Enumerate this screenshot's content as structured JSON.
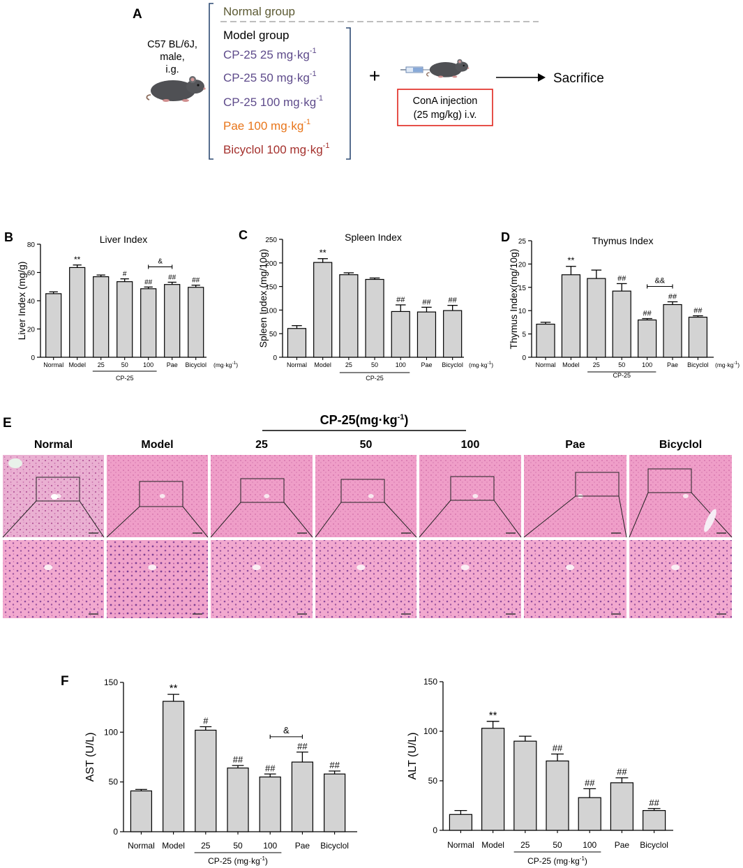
{
  "panel_a": {
    "letter": "A",
    "mouse_label": [
      "C57 BL/6J,",
      "male,",
      "i.g."
    ],
    "groups": [
      {
        "text": "Normal group",
        "color": "#5c5a33"
      },
      {
        "text": "Model group",
        "color": "#000000"
      },
      {
        "text": "CP-25 25 mg·kg",
        "sup": "-1",
        "color": "#5e4b8b"
      },
      {
        "text": "CP-25 50 mg·kg",
        "sup": "-1",
        "color": "#5e4b8b"
      },
      {
        "text": "CP-25 100 mg·kg",
        "sup": "-1",
        "color": "#5e4b8b"
      },
      {
        "text": "Pae 100 mg·kg",
        "sup": "-1",
        "color": "#e8751a"
      },
      {
        "text": "Bicyclol 100 mg·kg",
        "sup": "-1",
        "color": "#a4302c"
      }
    ],
    "plus": "+",
    "injection_box": [
      "ConA injection",
      "(25 mg/kg) i.v."
    ],
    "injection_box_color": "#e0241c",
    "outcome": "Sacrifice"
  },
  "panel_e": {
    "letter": "E",
    "header": "CP-25(mg·kg",
    "header_sup": "-1",
    "header_close": ")",
    "columns": [
      "Normal",
      "Model",
      "25",
      "50",
      "100",
      "Pae",
      "Bicyclol"
    ]
  },
  "panel_f": {
    "letter": "F"
  },
  "colors": {
    "bar_fill": "#d3d3d3",
    "tissue_light": "#f0b5d6",
    "tissue_dark": "#d777b0"
  },
  "chart_data": [
    {
      "id": "liver",
      "letter": "B",
      "type": "bar",
      "title": "Liver Index",
      "ylabel": "Liver Index (mg/g)",
      "ylim": [
        0,
        80
      ],
      "yticks": [
        0,
        20,
        40,
        60,
        80
      ],
      "categories": [
        "Normal",
        "Model",
        "25",
        "50",
        "100",
        "Pae",
        "Bicyclol"
      ],
      "values": [
        45,
        63.5,
        57,
        53.5,
        48.5,
        51.5,
        49.5
      ],
      "errors": [
        1.3,
        1.8,
        1.2,
        2.0,
        1.2,
        1.6,
        1.5
      ],
      "annotations": [
        "",
        "**",
        "",
        "#",
        "##",
        "##",
        "##"
      ],
      "bracket": {
        "from": 4,
        "to": 5,
        "label": "&"
      },
      "group_label": "CP-25",
      "unit": "(mg·kg",
      "unit_sup": "-1",
      "unit_close": ")"
    },
    {
      "id": "spleen",
      "letter": "C",
      "type": "bar",
      "title": "Spleen Index",
      "ylabel": "Spleen Index (mg/10g)",
      "ylim": [
        0,
        250
      ],
      "yticks": [
        0,
        50,
        100,
        150,
        200,
        250
      ],
      "categories": [
        "Normal",
        "Model",
        "25",
        "50",
        "100",
        "Pae",
        "Bicyclol"
      ],
      "values": [
        61,
        201,
        175,
        165,
        97,
        96,
        99
      ],
      "errors": [
        6,
        8,
        4,
        3,
        14,
        10,
        11
      ],
      "annotations": [
        "",
        "**",
        "",
        "",
        "##",
        "##",
        "##"
      ],
      "bracket": null,
      "group_label": "CP-25",
      "unit": "(mg·kg",
      "unit_sup": "-1",
      "unit_close": ")"
    },
    {
      "id": "thymus",
      "letter": "D",
      "type": "bar",
      "title": "Thymus Index",
      "ylabel": "Thymus Index(mg/10g)",
      "ylim": [
        0,
        25
      ],
      "yticks": [
        0,
        5,
        10,
        15,
        20,
        25
      ],
      "categories": [
        "Normal",
        "Model",
        "25",
        "50",
        "100",
        "Pae",
        "Bicyclol"
      ],
      "values": [
        7.1,
        17.7,
        16.9,
        14.2,
        8.0,
        11.3,
        8.6
      ],
      "errors": [
        0.4,
        1.8,
        1.8,
        1.6,
        0.3,
        0.6,
        0.3
      ],
      "annotations": [
        "",
        "**",
        "",
        "##",
        "##",
        "##",
        "##"
      ],
      "bracket": {
        "from": 4,
        "to": 5,
        "label": "&&"
      },
      "group_label": "CP-25",
      "unit": "(mg·kg",
      "unit_sup": "-1",
      "unit_close": ")"
    },
    {
      "id": "ast",
      "letter": "",
      "type": "bar",
      "title": "",
      "ylabel": "AST (U/L)",
      "ylim": [
        0,
        150
      ],
      "yticks": [
        0,
        50,
        100,
        150
      ],
      "categories": [
        "Normal",
        "Model",
        "25",
        "50",
        "100",
        "Pae",
        "Bicyclol"
      ],
      "values": [
        41,
        131,
        102,
        64,
        55,
        70,
        58
      ],
      "errors": [
        1.5,
        7,
        3.5,
        2.5,
        3,
        10,
        3
      ],
      "annotations": [
        "",
        "**",
        "#",
        "##",
        "##",
        "##",
        "##"
      ],
      "bracket": {
        "from": 4,
        "to": 5,
        "label": "&"
      },
      "group_label": "CP-25",
      "unit": "(mg·kg",
      "unit_sup": "-1",
      "unit_close": ")"
    },
    {
      "id": "alt",
      "letter": "",
      "type": "bar",
      "title": "",
      "ylabel": "ALT (U/L)",
      "ylim": [
        0,
        150
      ],
      "yticks": [
        0,
        50,
        100,
        150
      ],
      "categories": [
        "Normal",
        "Model",
        "25",
        "50",
        "100",
        "Pae",
        "Bicyclol"
      ],
      "values": [
        16,
        103,
        90,
        70,
        33,
        48,
        20
      ],
      "errors": [
        4,
        7,
        5,
        7,
        9,
        5,
        2
      ],
      "annotations": [
        "",
        "**",
        "",
        "##",
        "##",
        "##",
        "##"
      ],
      "bracket": null,
      "group_label": "CP-25",
      "unit": "(mg·kg",
      "unit_sup": "-1",
      "unit_close": ")"
    }
  ]
}
